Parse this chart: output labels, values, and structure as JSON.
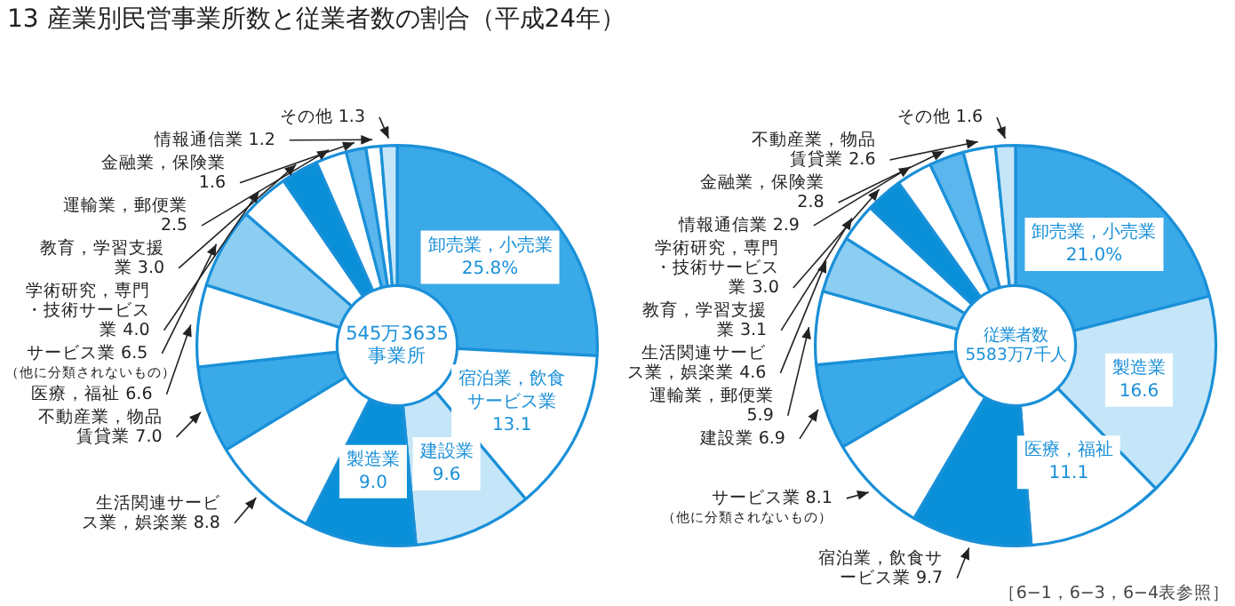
{
  "chart_data": [
    {
      "type": "donut",
      "title": "13 産業別民営事業所数と従業者数の割合（平成24年）",
      "categories": [
        "卸売業，小売業",
        "宿泊業，飲食サービス業",
        "建設業",
        "製造業",
        "生活関連サービス業，娯楽業",
        "不動産業，物品賃貸業",
        "医療，福祉",
        "サービス業",
        "学術研究，専門・技術サービス業",
        "教育，学習支援業",
        "運輸業，郵便業",
        "金融業，保険業",
        "情報通信業",
        "その他"
      ],
      "values": [
        25.8,
        13.1,
        9.6,
        9.0,
        8.8,
        7.0,
        6.6,
        6.5,
        4.0,
        3.0,
        2.5,
        1.6,
        1.2,
        1.3
      ],
      "value_labels": [
        "25.8%",
        "13.1",
        "9.6",
        "9.0",
        "8.8",
        "7.0",
        "6.6",
        "6.5",
        "4.0",
        "3.0",
        "2.5",
        "1.6",
        "1.2",
        "1.3"
      ],
      "colors": [
        "#3aa9e8",
        "#ffffff",
        "#c5e5f8",
        "#0a90d8",
        "#ffffff",
        "#3aa9e8",
        "#ffffff",
        "#8ccdf2",
        "#ffffff",
        "#0a90d8",
        "#ffffff",
        "#5ab6ec",
        "#ffffff",
        "#c5e5f8"
      ],
      "annotations": [
        "545万3635\n事業所",
        {
          "text": "（他に分類されないもの）",
          "x": "サービス業"
        }
      ]
    },
    {
      "type": "donut",
      "categories": [
        "卸売業，小売業",
        "製造業",
        "医療，福祉",
        "宿泊業，飲食サービス業",
        "サービス業",
        "建設業",
        "運輸業，郵便業",
        "生活関連サービス業，娯楽業",
        "教育，学習支援業",
        "学術研究，専門・技術サービス業",
        "情報通信業",
        "金融業，保険業",
        "不動産業，物品賃貸業",
        "その他"
      ],
      "values": [
        21.0,
        16.6,
        11.1,
        9.7,
        8.1,
        6.9,
        5.9,
        4.6,
        3.1,
        3.0,
        2.9,
        2.8,
        2.6,
        1.6
      ],
      "value_labels": [
        "21.0%",
        "16.6",
        "11.1",
        "9.7",
        "8.1",
        "6.9",
        "5.9",
        "4.6",
        "3.1",
        "3.0",
        "2.9",
        "2.8",
        "2.6",
        "1.6"
      ],
      "colors": [
        "#3aa9e8",
        "#c5e5f8",
        "#ffffff",
        "#0a90d8",
        "#ffffff",
        "#3aa9e8",
        "#ffffff",
        "#8ccdf2",
        "#ffffff",
        "#0a90d8",
        "#ffffff",
        "#5ab6ec",
        "#ffffff",
        "#c5e5f8"
      ],
      "annotations": [
        "従業者数\n5583万7千人",
        {
          "text": "（他に分類されないもの）",
          "x": "サービス業"
        },
        "［6−1，6−3，6−4表参照］"
      ]
    }
  ]
}
